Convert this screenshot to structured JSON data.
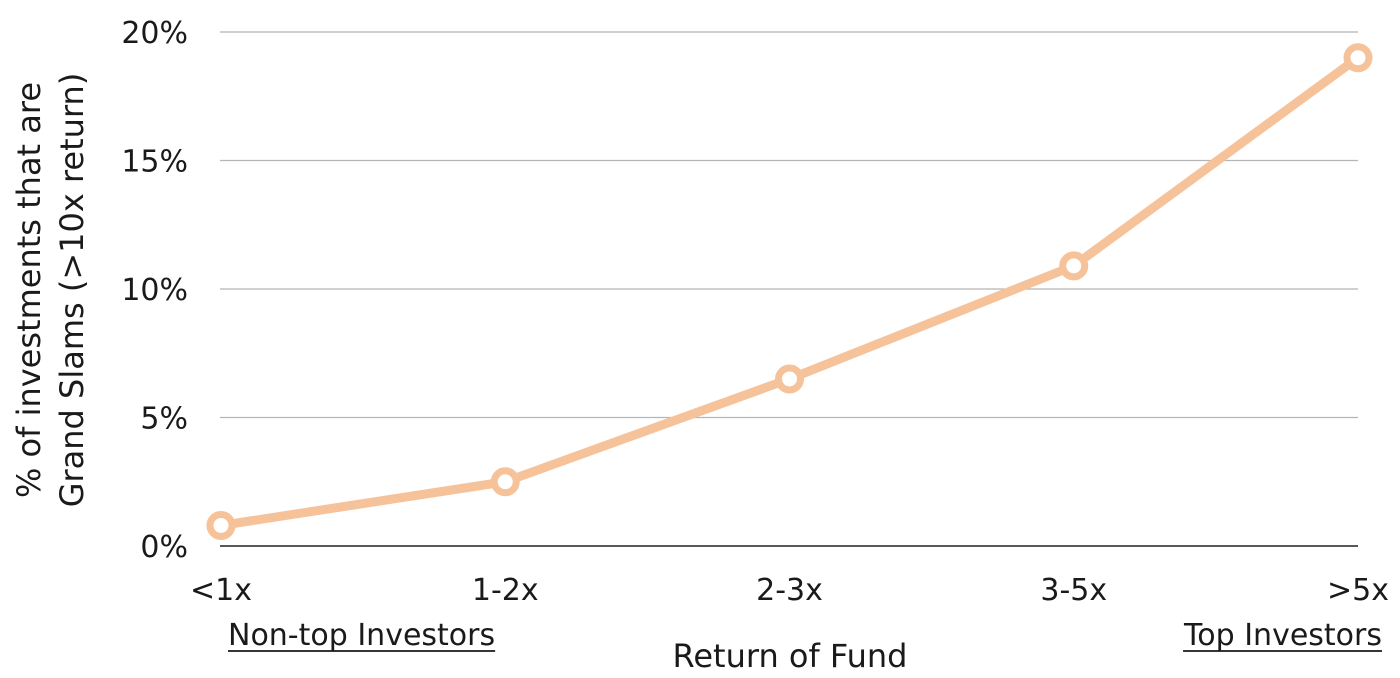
{
  "chart_data": {
    "type": "line",
    "title": "",
    "xlabel": "Return of Fund",
    "ylabel_lines": [
      "% of investments that are",
      "Grand Slams (>10x return)"
    ],
    "categories": [
      "<1x",
      "1-2x",
      "2-3x",
      "3-5x",
      ">5x"
    ],
    "series": [
      {
        "values": [
          0.8,
          2.5,
          6.5,
          10.9,
          19.0
        ]
      }
    ],
    "ylim": [
      0,
      20
    ],
    "yticks": [
      0,
      5,
      10,
      15,
      20
    ],
    "ytick_labels": [
      "0%",
      "5%",
      "10%",
      "15%",
      "20%"
    ],
    "grid": true,
    "annotations": {
      "left": "Non-top Investors",
      "right": "Top Investors"
    },
    "colors": {
      "line": "#f6c29a",
      "marker_fill": "#ffffff",
      "grid": "#b5b5b5",
      "axis": "#222222"
    }
  }
}
